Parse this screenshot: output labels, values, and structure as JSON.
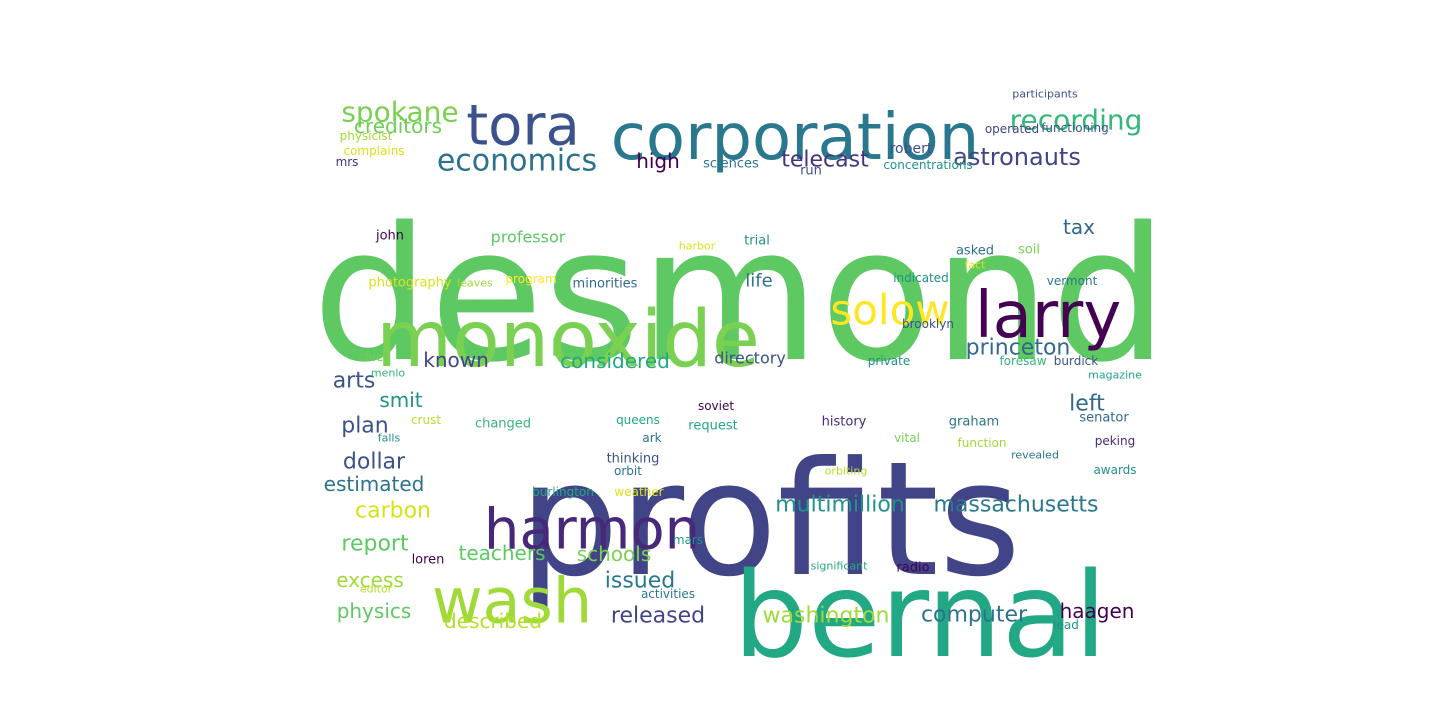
{
  "words": [
    {
      "text": "desmond",
      "color": "#5ec962"
    },
    {
      "text": "profits",
      "color": "#414487"
    },
    {
      "text": "bernal",
      "color": "#22a884"
    },
    {
      "text": "corporation",
      "color": "#2a788e"
    },
    {
      "text": "monoxide",
      "color": "#7ad151"
    },
    {
      "text": "larry",
      "color": "#440154"
    },
    {
      "text": "wash",
      "color": "#a0da39"
    },
    {
      "text": "harmon",
      "color": "#482878"
    },
    {
      "text": "tora",
      "color": "#3b528b"
    },
    {
      "text": "solow",
      "color": "#fde725"
    },
    {
      "text": "economics",
      "color": "#2c728e"
    },
    {
      "text": "spokane",
      "color": "#7ad151"
    },
    {
      "text": "recording",
      "color": "#35b779"
    },
    {
      "text": "astronauts",
      "color": "#414487"
    },
    {
      "text": "telecast",
      "color": "#46327e"
    },
    {
      "text": "multimillion",
      "color": "#21918c"
    },
    {
      "text": "massachusetts",
      "color": "#2a788e"
    },
    {
      "text": "princeton",
      "color": "#31688e"
    },
    {
      "text": "considered",
      "color": "#22a884"
    },
    {
      "text": "washington",
      "color": "#a0da39"
    },
    {
      "text": "computer",
      "color": "#2c728e"
    },
    {
      "text": "released",
      "color": "#414487"
    },
    {
      "text": "creditors",
      "color": "#6ece58"
    },
    {
      "text": "high",
      "color": "#440154"
    },
    {
      "text": "tax",
      "color": "#31688e"
    },
    {
      "text": "known",
      "color": "#414487"
    },
    {
      "text": "arts",
      "color": "#3b528b"
    },
    {
      "text": "smit",
      "color": "#21918c"
    },
    {
      "text": "plan",
      "color": "#3b528b"
    },
    {
      "text": "dollar",
      "color": "#3b528b"
    },
    {
      "text": "estimated",
      "color": "#2c728e"
    },
    {
      "text": "carbon",
      "color": "#d8e219"
    },
    {
      "text": "report",
      "color": "#5ec962"
    },
    {
      "text": "teachers",
      "color": "#5ec962"
    },
    {
      "text": "schools",
      "color": "#7ad151"
    },
    {
      "text": "issued",
      "color": "#2a788e"
    },
    {
      "text": "excess",
      "color": "#a0da39"
    },
    {
      "text": "physics",
      "color": "#5ec962"
    },
    {
      "text": "described",
      "color": "#b5de2b"
    },
    {
      "text": "haagen",
      "color": "#440154"
    },
    {
      "text": "left",
      "color": "#31688e"
    },
    {
      "text": "life",
      "color": "#2c728e"
    },
    {
      "text": "directory",
      "color": "#3b528b"
    },
    {
      "text": "professor",
      "color": "#5ec962"
    },
    {
      "text": "robert",
      "color": "#3b528b"
    },
    {
      "text": "participants",
      "color": "#3b528b"
    },
    {
      "text": "operated",
      "color": "#414487"
    },
    {
      "text": "functioning",
      "color": "#3b528b"
    },
    {
      "text": "physicist",
      "color": "#a0da39"
    },
    {
      "text": "complains",
      "color": "#d8e219"
    },
    {
      "text": "mrs",
      "color": "#46327e"
    },
    {
      "text": "sciences",
      "color": "#2c728e"
    },
    {
      "text": "run",
      "color": "#3b528b"
    },
    {
      "text": "concentrations",
      "color": "#21918c"
    },
    {
      "text": "john",
      "color": "#440154"
    },
    {
      "text": "trial",
      "color": "#21918c"
    },
    {
      "text": "harbor",
      "color": "#d8e219"
    },
    {
      "text": "asked",
      "color": "#2c728e"
    },
    {
      "text": "soil",
      "color": "#7ad151"
    },
    {
      "text": "fact",
      "color": "#d8e219"
    },
    {
      "text": "photography",
      "color": "#d8e219"
    },
    {
      "text": "leaves",
      "color": "#a0da39"
    },
    {
      "text": "program",
      "color": "#fde725"
    },
    {
      "text": "minorities",
      "color": "#31688e"
    },
    {
      "text": "indicated",
      "color": "#21918c"
    },
    {
      "text": "vermont",
      "color": "#2a788e"
    },
    {
      "text": "brooklyn",
      "color": "#3b528b"
    },
    {
      "text": "chief",
      "color": "#6ece58"
    },
    {
      "text": "private",
      "color": "#21918c"
    },
    {
      "text": "foresaw",
      "color": "#35b779"
    },
    {
      "text": "burdick",
      "color": "#3b528b"
    },
    {
      "text": "menlo",
      "color": "#35b779"
    },
    {
      "text": "magazine",
      "color": "#22a884"
    },
    {
      "text": "crust",
      "color": "#b5de2b"
    },
    {
      "text": "changed",
      "color": "#35b779"
    },
    {
      "text": "queens",
      "color": "#22a884"
    },
    {
      "text": "soviet",
      "color": "#440154"
    },
    {
      "text": "history",
      "color": "#482878"
    },
    {
      "text": "graham",
      "color": "#2c728e"
    },
    {
      "text": "senator",
      "color": "#31688e"
    },
    {
      "text": "falls",
      "color": "#21918c"
    },
    {
      "text": "ark",
      "color": "#2c728e"
    },
    {
      "text": "request",
      "color": "#22a884"
    },
    {
      "text": "vital",
      "color": "#7ad151"
    },
    {
      "text": "function",
      "color": "#a0da39"
    },
    {
      "text": "peking",
      "color": "#482878"
    },
    {
      "text": "thinking",
      "color": "#3b528b"
    },
    {
      "text": "orbit",
      "color": "#2a788e"
    },
    {
      "text": "revealed",
      "color": "#2a788e"
    },
    {
      "text": "orbiting",
      "color": "#b5de2b"
    },
    {
      "text": "awards",
      "color": "#21918c"
    },
    {
      "text": "burlington",
      "color": "#22a884"
    },
    {
      "text": "weather",
      "color": "#d8e219"
    },
    {
      "text": "mars",
      "color": "#21918c"
    },
    {
      "text": "loren",
      "color": "#440154"
    },
    {
      "text": "significant",
      "color": "#22a884"
    },
    {
      "text": "radio",
      "color": "#440154"
    },
    {
      "text": "editor",
      "color": "#b5de2b"
    },
    {
      "text": "activities",
      "color": "#2a788e"
    },
    {
      "text": "lead",
      "color": "#21918c"
    }
  ]
}
